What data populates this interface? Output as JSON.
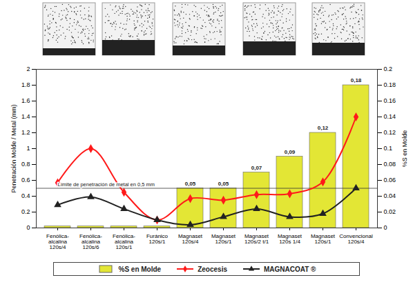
{
  "chart_data": {
    "type": "bar_line",
    "categories": [
      "Fenólica-alcalina",
      "Fenólica-alcalina",
      "Fenólica-alcalina",
      "Furánico",
      "Magnaset",
      "Magnaset",
      "Magnaset",
      "Magnaset",
      "Magnaset",
      "Convencional"
    ],
    "category_notes": [
      "120s/4",
      "120s/6",
      "120s/1",
      "120s/1",
      "120s/4",
      "120s/1",
      "120s/2 t/1",
      "120s 1/4",
      "120s/1",
      "120s/4"
    ],
    "ylabel": "Penetración Molde / Metal (mm)",
    "ylim": [
      0,
      2
    ],
    "yticks": [
      0,
      0.2,
      0.4,
      0.6,
      0.8,
      1,
      1.2,
      1.4,
      1.6,
      1.8,
      2
    ],
    "y2label": "%S en Molde",
    "y2lim": [
      0,
      0.2
    ],
    "y2ticks": [
      0,
      0.02,
      0.04,
      0.06,
      0.08,
      0.1,
      0.12,
      0.14,
      0.16,
      0.18,
      0.2
    ],
    "grid": false,
    "legend": "bottom",
    "data_labels": true,
    "series": [
      {
        "name": "%S en Molde",
        "type": "bar",
        "axis": "y2",
        "color": "#e3e635",
        "values": [
          0.002,
          0.002,
          0.002,
          0.002,
          0.05,
          0.05,
          0.07,
          0.09,
          0.12,
          0.18
        ],
        "value_labels": [
          null,
          null,
          null,
          null,
          "0,05",
          "0,05",
          "0,07",
          "0,09",
          "0,12",
          "0,18"
        ]
      },
      {
        "name": "Zeocesis",
        "type": "line",
        "color": "#ff1a1a",
        "marker": "diamond",
        "values": [
          0.57,
          1.0,
          0.45,
          0.1,
          0.37,
          0.35,
          0.42,
          0.43,
          0.58,
          1.4
        ]
      },
      {
        "name": "MAGNACOAT ®",
        "type": "line",
        "color": "#222222",
        "marker": "triangle",
        "values": [
          0.29,
          0.39,
          0.24,
          0.1,
          0.04,
          0.14,
          0.24,
          0.14,
          0.18,
          0.5
        ]
      }
    ],
    "annotations": [
      {
        "text": "Límite de penetración de metal en 0,5 mm",
        "y": 0.5
      }
    ]
  }
}
